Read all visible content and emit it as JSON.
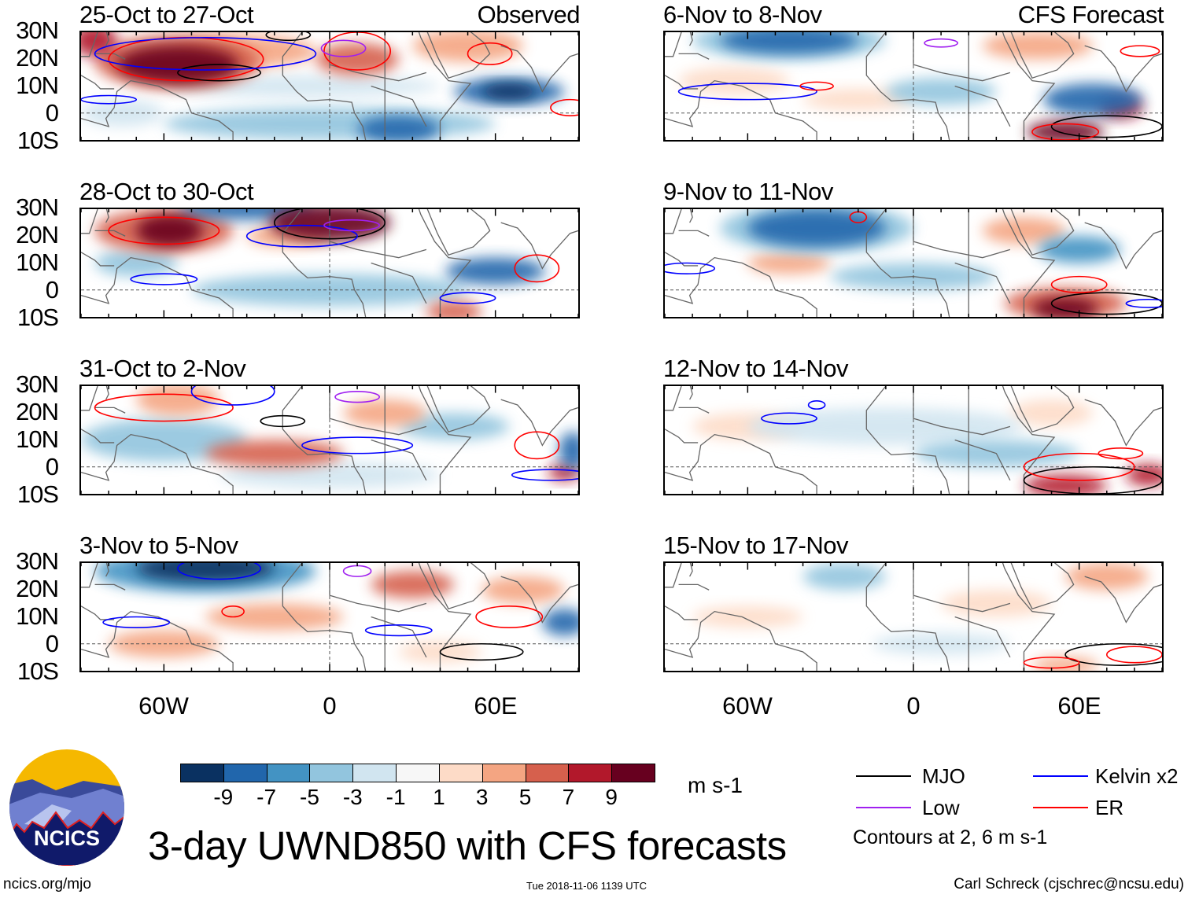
{
  "title": "3-day UWND850 with CFS forecasts",
  "panels": [
    {
      "title": "25-Oct to 27-Oct",
      "label": "Observed"
    },
    {
      "title": "6-Nov to 8-Nov",
      "label": "CFS Forecast"
    },
    {
      "title": "28-Oct to 30-Oct",
      "label": ""
    },
    {
      "title": "9-Nov to 11-Nov",
      "label": ""
    },
    {
      "title": "31-Oct to 2-Nov",
      "label": ""
    },
    {
      "title": "12-Nov to 14-Nov",
      "label": ""
    },
    {
      "title": "3-Nov to 5-Nov",
      "label": ""
    },
    {
      "title": "15-Nov to 17-Nov",
      "label": ""
    }
  ],
  "lat_labels": [
    "30N",
    "20N",
    "10N",
    "0",
    "10S"
  ],
  "lon_labels": [
    "60W",
    "0",
    "60E"
  ],
  "colorbar": {
    "labels": [
      "-9",
      "-7",
      "-5",
      "-3",
      "-1",
      "1",
      "3",
      "5",
      "7",
      "9"
    ],
    "colors": [
      "#0a3161",
      "#2166ac",
      "#4393c3",
      "#92c5de",
      "#d1e5f0",
      "#f7f7f7",
      "#fddbc7",
      "#f4a582",
      "#d6604d",
      "#b2182b",
      "#67001f"
    ],
    "units": "m s-1"
  },
  "legend": {
    "items": [
      {
        "label": "MJO",
        "color": "#000000"
      },
      {
        "label": "Kelvin x2",
        "color": "#0000ff"
      },
      {
        "label": "Low",
        "color": "#a020f0"
      },
      {
        "label": "ER",
        "color": "#ff0000"
      }
    ],
    "note": "Contours at 2, 6 m s-1"
  },
  "logo": {
    "text": "NCICS"
  },
  "footer": {
    "left": "ncics.org/mjo",
    "center": "Tue 2018-11-06 1139 UTC",
    "right": "Carl Schreck (cjschrec@ncsu.edu)"
  }
}
